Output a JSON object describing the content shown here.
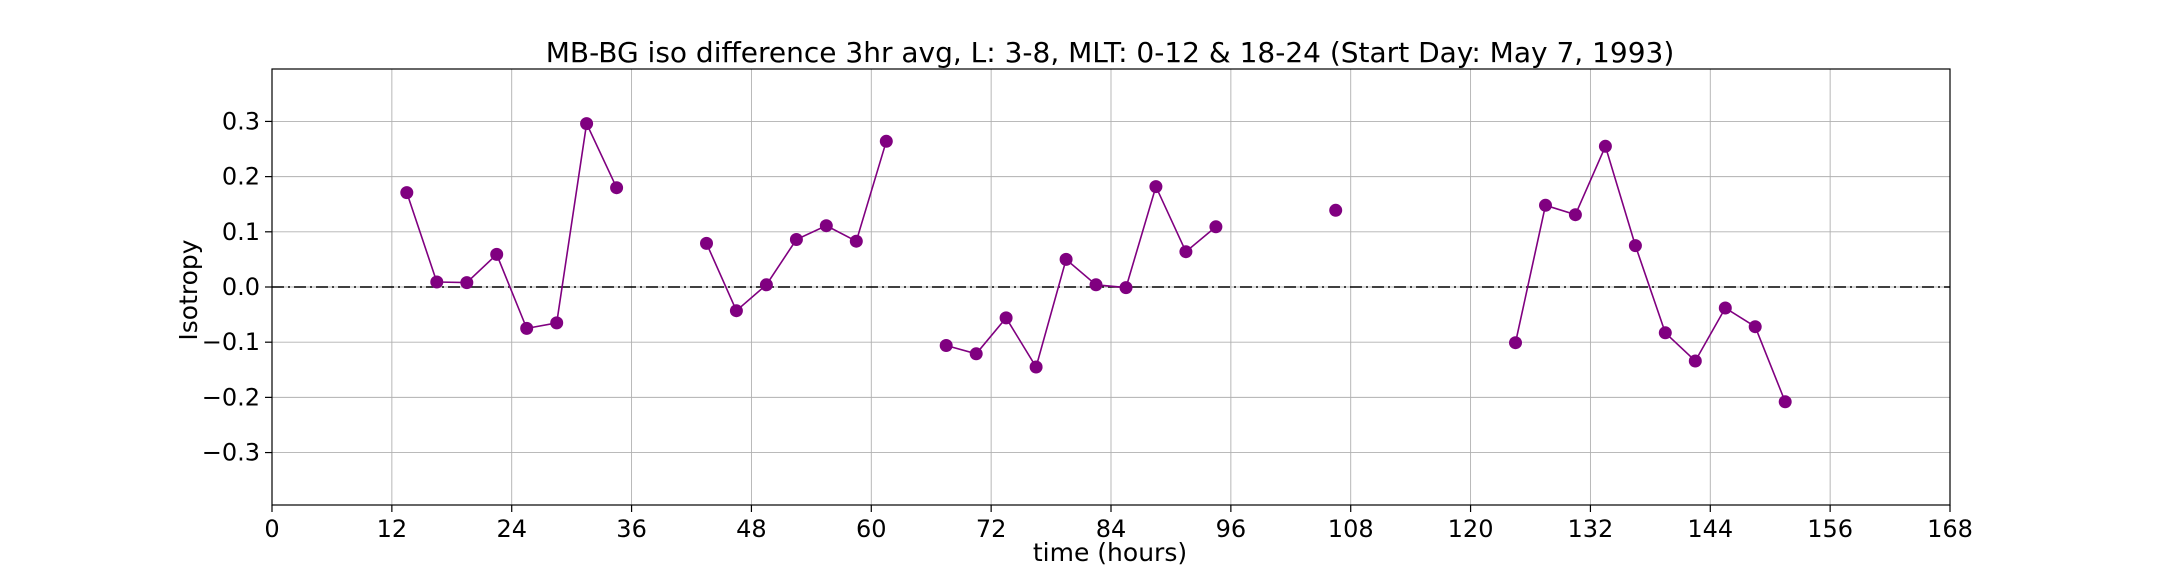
{
  "chart_data": {
    "type": "line",
    "title": "MB-BG iso difference 3hr avg, L: 3-8, MLT: 0-12 & 18-24 (Start Day: May 7, 1993)",
    "xlabel": "time (hours)",
    "ylabel": "Isotropy",
    "xlim": [
      0,
      168
    ],
    "ylim": [
      -0.395,
      0.395
    ],
    "xticks": [
      0,
      12,
      24,
      36,
      48,
      60,
      72,
      84,
      96,
      108,
      120,
      132,
      144,
      156,
      168
    ],
    "xtick_labels": [
      "0",
      "12",
      "24",
      "36",
      "48",
      "60",
      "72",
      "84",
      "96",
      "108",
      "120",
      "132",
      "144",
      "156",
      "168"
    ],
    "yticks": [
      -0.3,
      -0.2,
      -0.1,
      0.0,
      0.1,
      0.2,
      0.3
    ],
    "ytick_labels": [
      "−0.3",
      "−0.2",
      "−0.1",
      "0.0",
      "0.1",
      "0.2",
      "0.3"
    ],
    "grid": true,
    "reference_line": {
      "y": 0,
      "style": "dashdot",
      "color": "#000000"
    },
    "series": [
      {
        "color": "#800080",
        "segments": [
          [
            [
              13.5,
              0.171
            ],
            [
              16.5,
              0.009
            ],
            [
              19.5,
              0.008
            ],
            [
              22.5,
              0.059
            ],
            [
              25.5,
              -0.075
            ],
            [
              28.5,
              -0.065
            ],
            [
              31.5,
              0.296
            ],
            [
              34.5,
              0.18
            ]
          ],
          [
            [
              43.5,
              0.079
            ],
            [
              46.5,
              -0.043
            ],
            [
              49.5,
              0.004
            ],
            [
              52.5,
              0.086
            ],
            [
              55.5,
              0.111
            ],
            [
              58.5,
              0.083
            ],
            [
              61.5,
              0.264
            ]
          ],
          [
            [
              67.5,
              -0.106
            ],
            [
              70.5,
              -0.121
            ],
            [
              73.5,
              -0.056
            ],
            [
              76.5,
              -0.145
            ],
            [
              79.5,
              0.05
            ],
            [
              82.5,
              0.004
            ],
            [
              85.5,
              -0.001
            ],
            [
              88.5,
              0.182
            ],
            [
              91.5,
              0.064
            ],
            [
              94.5,
              0.109
            ]
          ],
          [
            [
              106.5,
              0.139
            ]
          ],
          [
            [
              124.5,
              -0.101
            ],
            [
              127.5,
              0.148
            ],
            [
              130.5,
              0.131
            ],
            [
              133.5,
              0.255
            ],
            [
              136.5,
              0.075
            ],
            [
              139.5,
              -0.083
            ],
            [
              142.5,
              -0.134
            ],
            [
              145.5,
              -0.038
            ],
            [
              148.5,
              -0.072
            ],
            [
              151.5,
              -0.208
            ]
          ]
        ]
      }
    ]
  }
}
